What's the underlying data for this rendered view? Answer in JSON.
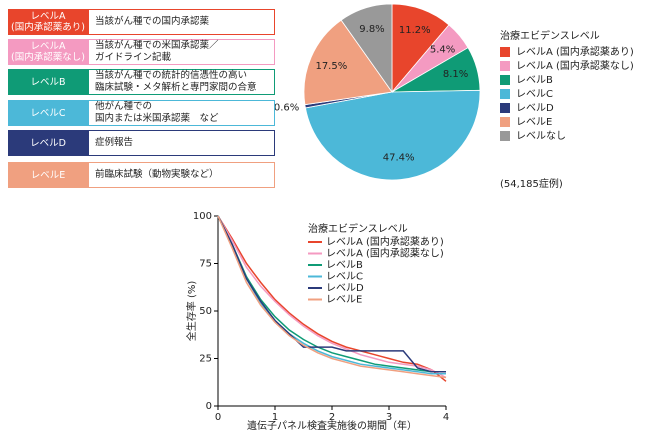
{
  "table": {
    "rows": [
      {
        "label": [
          "レベルA",
          "(国内承認薬あり)"
        ],
        "text": [
          "当該がん種での国内承認薬"
        ],
        "color": "#e8452c"
      },
      {
        "label": [
          "レベルA",
          "(国内承認薬なし)"
        ],
        "text": [
          "当該がん種での米国承認薬／",
          "ガイドライン記載"
        ],
        "color": "#f49ac1"
      },
      {
        "label": [
          "レベルB"
        ],
        "text": [
          "当該がん種での統計的信憑性の高い",
          "臨床試験・メタ解析と専門家間の合意"
        ],
        "color": "#0f9b76"
      },
      {
        "label": [
          "レベルC"
        ],
        "text": [
          "他がん種での",
          "国内または米国承認薬　など"
        ],
        "color": "#4cb8d8"
      },
      {
        "label": [
          "レベルD"
        ],
        "text": [
          "症例報告"
        ],
        "color": "#2b3a7a"
      },
      {
        "label": [
          "レベルE"
        ],
        "text": [
          "前臨床試験（動物実験など）"
        ],
        "color": "#f0a080"
      }
    ]
  },
  "chart_data": [
    {
      "type": "pie",
      "legend_title": "治療エビデンスレベル",
      "note": "(54,185症例)",
      "categories": [
        "レベルA (国内承認薬あり)",
        "レベルA (国内承認薬なし)",
        "レベルB",
        "レベルC",
        "レベルD",
        "レベルE",
        "レベルなし"
      ],
      "values": [
        11.2,
        5.4,
        8.1,
        47.4,
        0.6,
        17.5,
        9.8
      ],
      "value_labels": [
        "11.2%",
        "5.4%",
        "8.1%",
        "47.4%",
        "0.6%",
        "17.5%",
        "9.8%"
      ],
      "colors": [
        "#e8452c",
        "#f49ac1",
        "#0f9b76",
        "#4cb8d8",
        "#2b3a7a",
        "#f0a080",
        "#999999"
      ]
    },
    {
      "type": "line",
      "legend_title": "治療エビデンスレベル",
      "xlabel": "遺伝子パネル検査実施後の期間（年）",
      "ylabel": "全生存率 (%)",
      "x": [
        0,
        0.25,
        0.5,
        0.75,
        1,
        1.25,
        1.5,
        1.75,
        2,
        2.25,
        2.5,
        2.75,
        3,
        3.25,
        3.5,
        3.75,
        4
      ],
      "xlim": [
        0,
        4
      ],
      "ylim": [
        0,
        100
      ],
      "xticks": [
        0,
        1,
        2,
        3,
        4
      ],
      "yticks": [
        0,
        25,
        50,
        75,
        100
      ],
      "series": [
        {
          "name": "レベルA (国内承認薬あり)",
          "color": "#e8452c",
          "values": [
            100,
            88,
            75,
            65,
            56,
            49,
            43,
            38,
            34,
            31,
            29,
            27,
            25,
            23,
            22,
            19,
            13
          ]
        },
        {
          "name": "レベルA (国内承認薬なし)",
          "color": "#f49ac1",
          "values": [
            100,
            87,
            73,
            63,
            55,
            48,
            42,
            37,
            33,
            30,
            27,
            25,
            23,
            22,
            21,
            19,
            15
          ]
        },
        {
          "name": "レベルB",
          "color": "#0f9b76",
          "values": [
            100,
            85,
            68,
            56,
            47,
            40,
            35,
            31,
            28,
            26,
            24,
            22,
            21,
            20,
            19,
            18,
            18
          ]
        },
        {
          "name": "レベルC",
          "color": "#4cb8d8",
          "values": [
            100,
            84,
            67,
            54,
            45,
            38,
            33,
            29,
            26,
            24,
            22,
            21,
            20,
            19,
            18,
            17,
            17
          ]
        },
        {
          "name": "レベルD",
          "color": "#2b3a7a",
          "values": [
            100,
            85,
            67,
            55,
            45,
            38,
            31,
            31,
            31,
            29,
            29,
            29,
            29,
            29,
            20,
            18,
            18
          ]
        },
        {
          "name": "レベルE",
          "color": "#f0a080",
          "values": [
            100,
            83,
            65,
            53,
            44,
            37,
            32,
            28,
            25,
            23,
            21,
            20,
            19,
            18,
            17,
            16,
            15
          ]
        }
      ]
    }
  ]
}
